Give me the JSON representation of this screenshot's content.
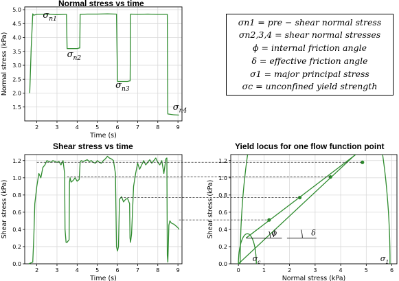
{
  "chart_data": [
    {
      "id": "normal",
      "type": "line",
      "title": "Normal stress vs time",
      "xlabel": "Time (s)",
      "ylabel": "Normal stress (kPa)",
      "xlim": [
        1.4,
        9.2
      ],
      "ylim": [
        1.0,
        5.1
      ],
      "xticks": [
        2,
        3,
        4,
        5,
        6,
        7,
        8,
        9
      ],
      "yticks": [
        1.5,
        2.0,
        2.5,
        3.0,
        3.5,
        4.0,
        4.5,
        5.0
      ],
      "tick_labels_x": [
        "2",
        "3",
        "4",
        "5",
        "6",
        "7",
        "8",
        "9"
      ],
      "tick_labels_y": [
        "1.5",
        "2.0",
        "2.5",
        "3.0",
        "3.5",
        "4.0",
        "4.5",
        "5.0"
      ],
      "grid": true,
      "color": "#2e8b2e",
      "series": [
        {
          "x": [
            1.65,
            1.72,
            1.8,
            1.85,
            2.0,
            2.5,
            3.0,
            3.4,
            3.47,
            3.5,
            4.0,
            4.1,
            4.13,
            4.15,
            4.5,
            5.0,
            5.5,
            5.9,
            5.95,
            6.0,
            6.5,
            6.6,
            6.63,
            6.65,
            7.0,
            7.5,
            8.0,
            8.4,
            8.47,
            8.5,
            8.8,
            9.05
          ],
          "y": [
            2.0,
            3.6,
            4.85,
            4.8,
            4.83,
            4.84,
            4.82,
            4.83,
            4.83,
            3.6,
            3.6,
            3.62,
            3.62,
            4.83,
            4.84,
            4.84,
            4.85,
            4.84,
            4.84,
            2.42,
            2.42,
            2.44,
            2.44,
            4.84,
            4.83,
            4.84,
            4.83,
            4.83,
            4.83,
            1.25,
            1.22,
            1.21
          ]
        }
      ],
      "annotations": [
        {
          "text": "σ",
          "sub": "n1",
          "x": 2.3,
          "y": 4.7
        },
        {
          "text": "σ",
          "sub": "n2",
          "x": 3.5,
          "y": 3.3
        },
        {
          "text": "σ",
          "sub": "n3",
          "x": 5.9,
          "y": 2.18
        },
        {
          "text": "σ",
          "sub": "n4",
          "x": 8.75,
          "y": 1.4
        }
      ]
    },
    {
      "id": "shear",
      "type": "line",
      "title": "Shear stress vs time",
      "xlabel": "Time (s)",
      "ylabel": "Shear stress (kPa)",
      "xlim": [
        1.4,
        9.2
      ],
      "ylim": [
        0.0,
        1.27
      ],
      "xticks": [
        2,
        3,
        4,
        5,
        6,
        7,
        8,
        9
      ],
      "yticks": [
        0.0,
        0.2,
        0.4,
        0.6,
        0.8,
        1.0,
        1.2
      ],
      "tick_labels_x": [
        "2",
        "3",
        "4",
        "5",
        "6",
        "7",
        "8",
        "9"
      ],
      "tick_labels_y": [
        "0.0",
        "0.2",
        "0.4",
        "0.6",
        "0.8",
        "1.0",
        "1.2"
      ],
      "grid": true,
      "color": "#2e8b2e",
      "series": [
        {
          "x": [
            1.6,
            1.8,
            1.85,
            1.9,
            2.0,
            2.1,
            2.2,
            2.3,
            2.4,
            2.5,
            2.6,
            2.7,
            2.8,
            2.9,
            3.0,
            3.1,
            3.2,
            3.3,
            3.38,
            3.4,
            3.45,
            3.5,
            3.6,
            3.62,
            3.65,
            3.7,
            3.8,
            3.9,
            4.0,
            4.1,
            4.15,
            4.2,
            4.3,
            4.4,
            4.5,
            4.6,
            4.7,
            4.8,
            4.9,
            5.0,
            5.1,
            5.2,
            5.3,
            5.4,
            5.5,
            5.6,
            5.7,
            5.8,
            5.9,
            5.95,
            6.0,
            6.05,
            6.1,
            6.2,
            6.3,
            6.4,
            6.5,
            6.6,
            6.62,
            6.65,
            6.7,
            6.8,
            6.9,
            7.0,
            7.1,
            7.2,
            7.3,
            7.4,
            7.5,
            7.6,
            7.7,
            7.8,
            7.9,
            8.0,
            8.1,
            8.2,
            8.3,
            8.4,
            8.45,
            8.47,
            8.5,
            8.55,
            8.6,
            8.65,
            8.7,
            8.8,
            8.9,
            9.0,
            9.05
          ],
          "y": [
            0.0,
            0.02,
            0.3,
            0.7,
            0.9,
            1.05,
            1.0,
            1.12,
            1.15,
            1.2,
            1.19,
            1.18,
            1.2,
            1.19,
            1.18,
            1.19,
            1.15,
            1.2,
            1.05,
            0.4,
            0.25,
            0.25,
            0.28,
            0.95,
            1.0,
            0.95,
            0.97,
            1.0,
            0.96,
            0.98,
            1.18,
            1.2,
            1.19,
            1.2,
            1.21,
            1.19,
            1.2,
            1.18,
            1.17,
            1.2,
            1.18,
            1.17,
            1.2,
            1.22,
            1.25,
            1.23,
            1.22,
            1.2,
            1.05,
            0.2,
            0.15,
            0.2,
            0.75,
            0.78,
            0.72,
            0.75,
            0.76,
            0.7,
            0.3,
            0.25,
            0.35,
            0.9,
            1.05,
            1.17,
            1.1,
            1.15,
            1.2,
            1.15,
            1.18,
            1.21,
            1.17,
            1.2,
            1.23,
            1.18,
            1.15,
            1.2,
            1.05,
            1.22,
            1.23,
            0.1,
            0.02,
            0.45,
            0.5,
            0.48,
            0.47,
            0.46,
            0.44,
            0.42,
            0.4
          ]
        }
      ]
    },
    {
      "id": "yield",
      "type": "line",
      "title": "Yield locus for one flow function point",
      "xlabel": "Normal stress (kPa)",
      "ylabel": "Shear stress (kPa)",
      "xlim": [
        -0.3,
        6.2
      ],
      "ylim": [
        0.0,
        1.27
      ],
      "xticks": [
        0,
        1,
        2,
        3,
        4,
        5,
        6
      ],
      "yticks": [
        0.0,
        0.2,
        0.4,
        0.6,
        0.8,
        1.0,
        1.2
      ],
      "tick_labels_x": [
        "0",
        "1",
        "2",
        "3",
        "4",
        "5",
        "6"
      ],
      "tick_labels_y": [
        "0.0",
        "0.2",
        "0.4",
        "0.6",
        "0.8",
        "1.0",
        "1.2"
      ],
      "grid": true,
      "color": "#2e8b2e",
      "points": [
        {
          "x": 1.2,
          "y": 0.51
        },
        {
          "x": 2.4,
          "y": 0.77
        },
        {
          "x": 3.6,
          "y": 1.01
        },
        {
          "x": 4.85,
          "y": 1.18
        }
      ],
      "yield_locus": {
        "x": [
          0.3,
          4.5
        ],
        "y": [
          0.3,
          1.25
        ]
      },
      "wall_line": {
        "x": [
          0.0,
          4.5
        ],
        "y": [
          0.0,
          1.25
        ]
      },
      "small_circle": {
        "center": 0.35,
        "radius": 0.35
      },
      "large_circle": {
        "center": 3.0,
        "radius": 2.93
      },
      "annotations": [
        {
          "text": "ϕ",
          "x": 1.3,
          "y": 0.33
        },
        {
          "text": "δ",
          "x": 2.85,
          "y": 0.33
        },
        {
          "text": "σ",
          "sub": "c",
          "x": 0.55,
          "y": 0.03
        },
        {
          "text": "σ",
          "sub": "1",
          "x": 5.55,
          "y": 0.03
        }
      ]
    }
  ],
  "legend_box": [
    "σn1 = pre − shear normal stress",
    "σn2,3,4 = shear normal stresses",
    "ϕ = internal friction angle",
    "δ = effective friction angle",
    "σ1 = major principal stress",
    "σc = unconfined yield strength"
  ]
}
